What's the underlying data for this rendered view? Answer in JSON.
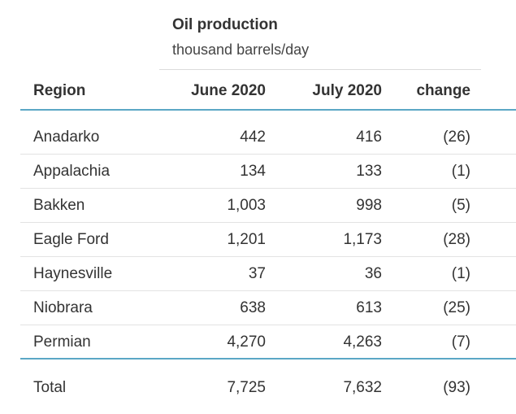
{
  "group_header": {
    "title": "Oil production",
    "subtitle": "thousand barrels/day"
  },
  "columns": {
    "region": "Region",
    "june": "June 2020",
    "july": "July 2020",
    "change": "change"
  },
  "rows": [
    {
      "region": "Anadarko",
      "june": "442",
      "july": "416",
      "change": "(26)"
    },
    {
      "region": "Appalachia",
      "june": "134",
      "july": "133",
      "change": "(1)"
    },
    {
      "region": "Bakken",
      "june": "1,003",
      "july": "998",
      "change": "(5)"
    },
    {
      "region": "Eagle Ford",
      "june": "1,201",
      "july": "1,173",
      "change": "(28)"
    },
    {
      "region": "Haynesville",
      "june": "37",
      "july": "36",
      "change": "(1)"
    },
    {
      "region": "Niobrara",
      "june": "638",
      "july": "613",
      "change": "(25)"
    },
    {
      "region": "Permian",
      "june": "4,270",
      "july": "4,263",
      "change": "(7)"
    }
  ],
  "total": {
    "region": "Total",
    "june": "7,725",
    "july": "7,632",
    "change": "(93)"
  },
  "colors": {
    "accent_rule": "#5ba7c5",
    "text": "#333333"
  }
}
